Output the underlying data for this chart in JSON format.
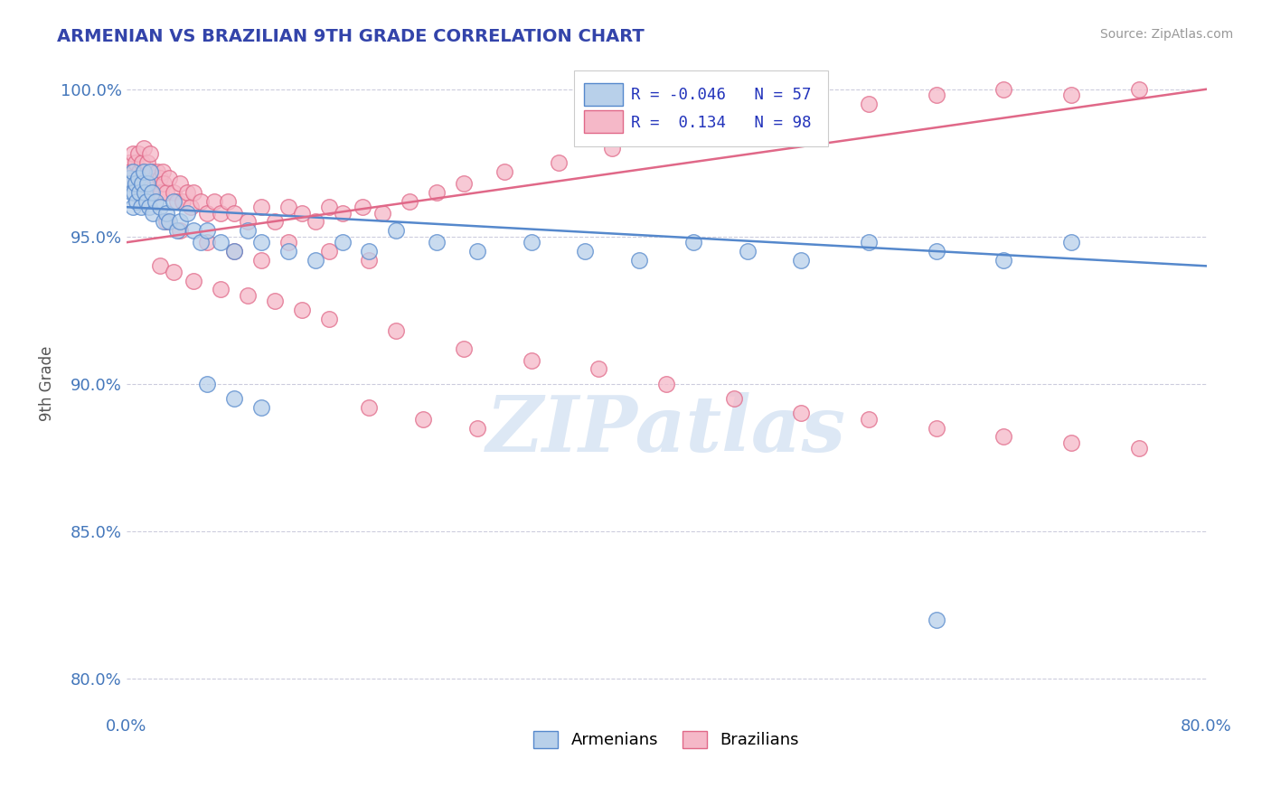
{
  "title": "ARMENIAN VS BRAZILIAN 9TH GRADE CORRELATION CHART",
  "source": "Source: ZipAtlas.com",
  "ylabel": "9th Grade",
  "xlim": [
    0.0,
    0.8
  ],
  "ylim": [
    0.788,
    1.012
  ],
  "xtick_labels": [
    "0.0%",
    "80.0%"
  ],
  "ytick_vals": [
    0.8,
    0.85,
    0.9,
    0.95,
    1.0
  ],
  "ytick_labels": [
    "80.0%",
    "85.0%",
    "90.0%",
    "95.0%",
    "100.0%"
  ],
  "legend_r_armenian": "-0.046",
  "legend_n_armenian": "57",
  "legend_r_brazilian": "0.134",
  "legend_n_brazilian": "98",
  "armenian_color": "#b8d0ea",
  "armenian_edge": "#5588cc",
  "brazilian_color": "#f5b8c8",
  "brazilian_edge": "#e06888",
  "trendline_armenian_color": "#5588cc",
  "trendline_brazilian_color": "#e06888",
  "armenians_x": [
    0.002,
    0.003,
    0.004,
    0.005,
    0.005,
    0.006,
    0.007,
    0.008,
    0.009,
    0.01,
    0.011,
    0.012,
    0.013,
    0.014,
    0.015,
    0.016,
    0.017,
    0.018,
    0.019,
    0.02,
    0.022,
    0.025,
    0.028,
    0.03,
    0.032,
    0.035,
    0.038,
    0.04,
    0.045,
    0.05,
    0.055,
    0.06,
    0.07,
    0.08,
    0.09,
    0.1,
    0.12,
    0.14,
    0.16,
    0.18,
    0.2,
    0.23,
    0.26,
    0.3,
    0.34,
    0.38,
    0.42,
    0.46,
    0.5,
    0.55,
    0.6,
    0.65,
    0.7,
    0.06,
    0.08,
    0.1,
    0.6
  ],
  "armenians_y": [
    0.97,
    0.968,
    0.965,
    0.972,
    0.96,
    0.965,
    0.968,
    0.962,
    0.97,
    0.965,
    0.96,
    0.968,
    0.972,
    0.965,
    0.962,
    0.968,
    0.96,
    0.972,
    0.965,
    0.958,
    0.962,
    0.96,
    0.955,
    0.958,
    0.955,
    0.962,
    0.952,
    0.955,
    0.958,
    0.952,
    0.948,
    0.952,
    0.948,
    0.945,
    0.952,
    0.948,
    0.945,
    0.942,
    0.948,
    0.945,
    0.952,
    0.948,
    0.945,
    0.948,
    0.945,
    0.942,
    0.948,
    0.945,
    0.942,
    0.948,
    0.945,
    0.942,
    0.948,
    0.9,
    0.895,
    0.892,
    0.82
  ],
  "brazilians_x": [
    0.002,
    0.003,
    0.004,
    0.005,
    0.005,
    0.006,
    0.007,
    0.008,
    0.009,
    0.01,
    0.011,
    0.012,
    0.013,
    0.014,
    0.015,
    0.016,
    0.017,
    0.018,
    0.019,
    0.02,
    0.021,
    0.022,
    0.023,
    0.024,
    0.025,
    0.026,
    0.027,
    0.028,
    0.03,
    0.032,
    0.035,
    0.038,
    0.04,
    0.042,
    0.045,
    0.048,
    0.05,
    0.055,
    0.06,
    0.065,
    0.07,
    0.075,
    0.08,
    0.09,
    0.1,
    0.11,
    0.12,
    0.13,
    0.14,
    0.15,
    0.16,
    0.175,
    0.19,
    0.21,
    0.23,
    0.25,
    0.28,
    0.32,
    0.36,
    0.4,
    0.45,
    0.5,
    0.55,
    0.6,
    0.65,
    0.7,
    0.75,
    0.03,
    0.04,
    0.06,
    0.08,
    0.1,
    0.12,
    0.15,
    0.18,
    0.025,
    0.035,
    0.05,
    0.07,
    0.09,
    0.11,
    0.13,
    0.15,
    0.2,
    0.25,
    0.3,
    0.35,
    0.4,
    0.45,
    0.5,
    0.55,
    0.6,
    0.65,
    0.7,
    0.75,
    0.18,
    0.22,
    0.26
  ],
  "brazilians_y": [
    0.975,
    0.972,
    0.97,
    0.978,
    0.968,
    0.972,
    0.975,
    0.968,
    0.978,
    0.972,
    0.968,
    0.975,
    0.98,
    0.972,
    0.968,
    0.975,
    0.968,
    0.978,
    0.972,
    0.965,
    0.97,
    0.968,
    0.972,
    0.965,
    0.97,
    0.965,
    0.972,
    0.968,
    0.965,
    0.97,
    0.965,
    0.962,
    0.968,
    0.962,
    0.965,
    0.96,
    0.965,
    0.962,
    0.958,
    0.962,
    0.958,
    0.962,
    0.958,
    0.955,
    0.96,
    0.955,
    0.96,
    0.958,
    0.955,
    0.96,
    0.958,
    0.96,
    0.958,
    0.962,
    0.965,
    0.968,
    0.972,
    0.975,
    0.98,
    0.985,
    0.99,
    0.992,
    0.995,
    0.998,
    1.0,
    0.998,
    1.0,
    0.955,
    0.952,
    0.948,
    0.945,
    0.942,
    0.948,
    0.945,
    0.942,
    0.94,
    0.938,
    0.935,
    0.932,
    0.93,
    0.928,
    0.925,
    0.922,
    0.918,
    0.912,
    0.908,
    0.905,
    0.9,
    0.895,
    0.89,
    0.888,
    0.885,
    0.882,
    0.88,
    0.878,
    0.892,
    0.888,
    0.885
  ]
}
